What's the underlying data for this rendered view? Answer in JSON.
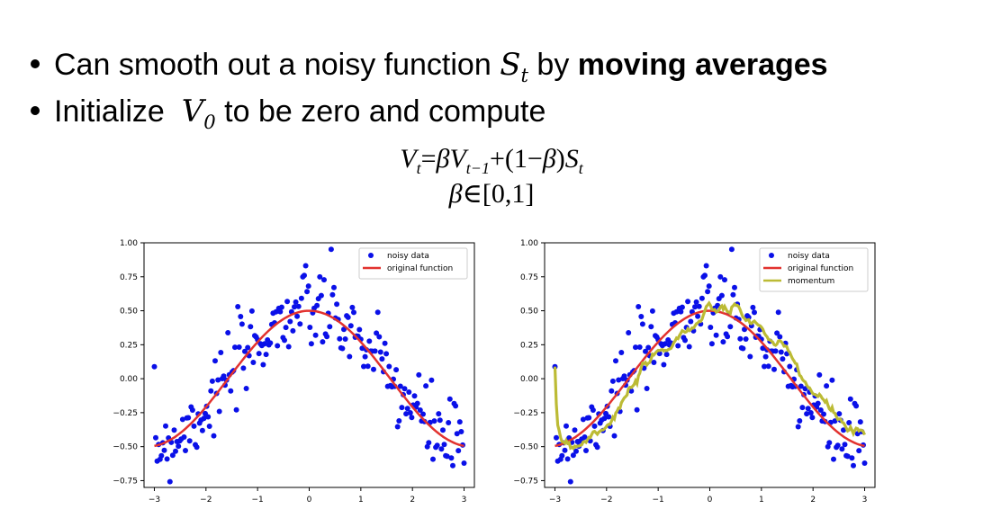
{
  "bullets": [
    {
      "pre": "Can smooth out a noisy function ",
      "var": "S",
      "sub": "t",
      "mid": " by ",
      "bold": "moving averages"
    },
    {
      "pre": "Initialize  ",
      "var": "V",
      "sub": "0",
      "post": " to be zero and compute"
    }
  ],
  "formula": {
    "line1": {
      "lhs_var": "V",
      "lhs_sub": "t",
      "eq": "=",
      "beta": "β",
      "v": "V",
      "v_sub": "t−1",
      "plus": "+(1−",
      "beta2": "β",
      "close": ")",
      "s": "S",
      "s_sub": "t"
    },
    "line2": {
      "beta": "β",
      "rest": "∈[0,1]"
    }
  },
  "colors": {
    "noisy": "#0a10e8",
    "original": "#e2322f",
    "momentum": "#bcbb35"
  },
  "chart_data": [
    {
      "type": "scatter",
      "title": "",
      "xlabel": "",
      "ylabel": "",
      "xlim": [
        -3.2,
        3.2
      ],
      "ylim": [
        -0.8,
        1.0
      ],
      "xticks": [
        "−3",
        "−2",
        "−1",
        "0",
        "1",
        "2",
        "3"
      ],
      "yticks": [
        "1.00",
        "0.75",
        "0.50",
        "0.25",
        "0.00",
        "−0.25",
        "−0.50",
        "−0.75"
      ],
      "legend_position": "top-right",
      "grid": false,
      "legend": [
        "noisy data",
        "original function"
      ]
    },
    {
      "type": "scatter",
      "title": "",
      "xlabel": "",
      "ylabel": "",
      "xlim": [
        -3.2,
        3.2
      ],
      "ylim": [
        -0.8,
        1.0
      ],
      "xticks": [
        "−3",
        "−2",
        "−1",
        "0",
        "1",
        "2",
        "3"
      ],
      "yticks": [
        "1.00",
        "0.75",
        "0.50",
        "0.25",
        "0.00",
        "−0.25",
        "−0.50",
        "−0.75"
      ],
      "legend_position": "top-right",
      "grid": false,
      "legend": [
        "noisy data",
        "original function",
        "momentum"
      ]
    }
  ]
}
